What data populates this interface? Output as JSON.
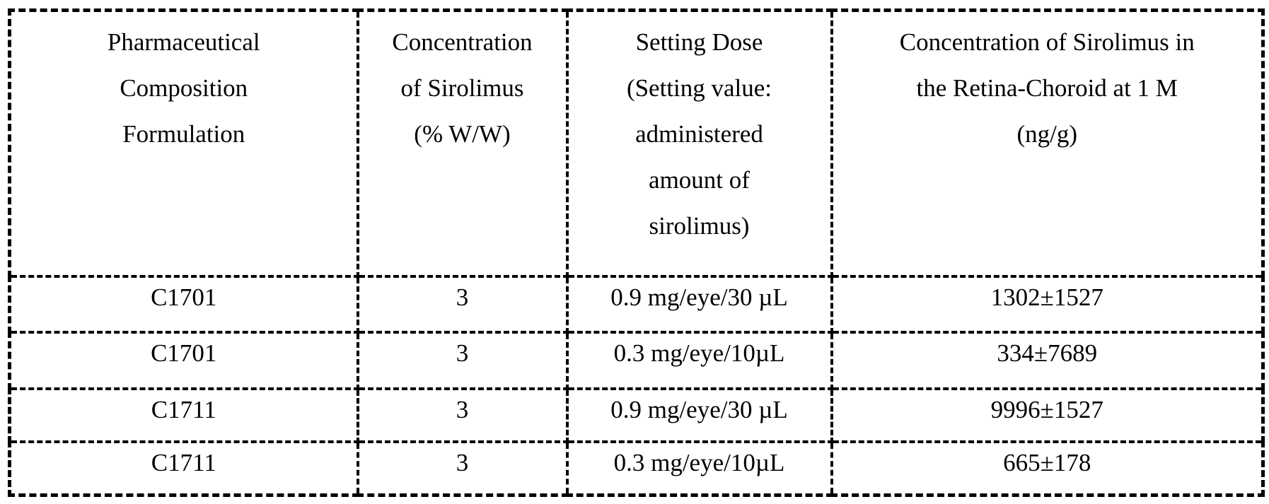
{
  "page": {
    "background_color": "#ffffff",
    "text_color": "#000000",
    "border_color": "#000000"
  },
  "table": {
    "description": "Concentration of sirolimus in the retina-choroid for pharmaceutical composition formulations",
    "columns": [
      {
        "id": "formulation",
        "header_lines": [
          "Pharmaceutical",
          "Composition",
          "Formulation"
        ]
      },
      {
        "id": "sirolimus-concentration",
        "header_lines": [
          "Concentration",
          "of Sirolimus",
          "(% W/W)"
        ]
      },
      {
        "id": "setting-dose",
        "header_lines": [
          "Setting Dose",
          "(Setting value:",
          "administered",
          "amount of",
          "sirolimus)"
        ]
      },
      {
        "id": "retina-choroid-concentration",
        "header_lines": [
          "Concentration of Sirolimus in",
          "the Retina-Choroid at 1 M",
          "(ng/g)"
        ]
      }
    ],
    "rows": [
      {
        "cells": [
          "C1701",
          "3",
          "0.9 mg/eye/30 µL",
          "1302±1527"
        ]
      },
      {
        "cells": [
          "C1701",
          "3",
          "0.3 mg/eye/10µL",
          "334±7689"
        ]
      },
      {
        "cells": [
          "C1711",
          "3",
          "0.9 mg/eye/30 µL",
          "9996±1527"
        ]
      },
      {
        "cells": [
          "C1711",
          "3",
          "0.3 mg/eye/10µL",
          "665±178"
        ]
      }
    ]
  }
}
